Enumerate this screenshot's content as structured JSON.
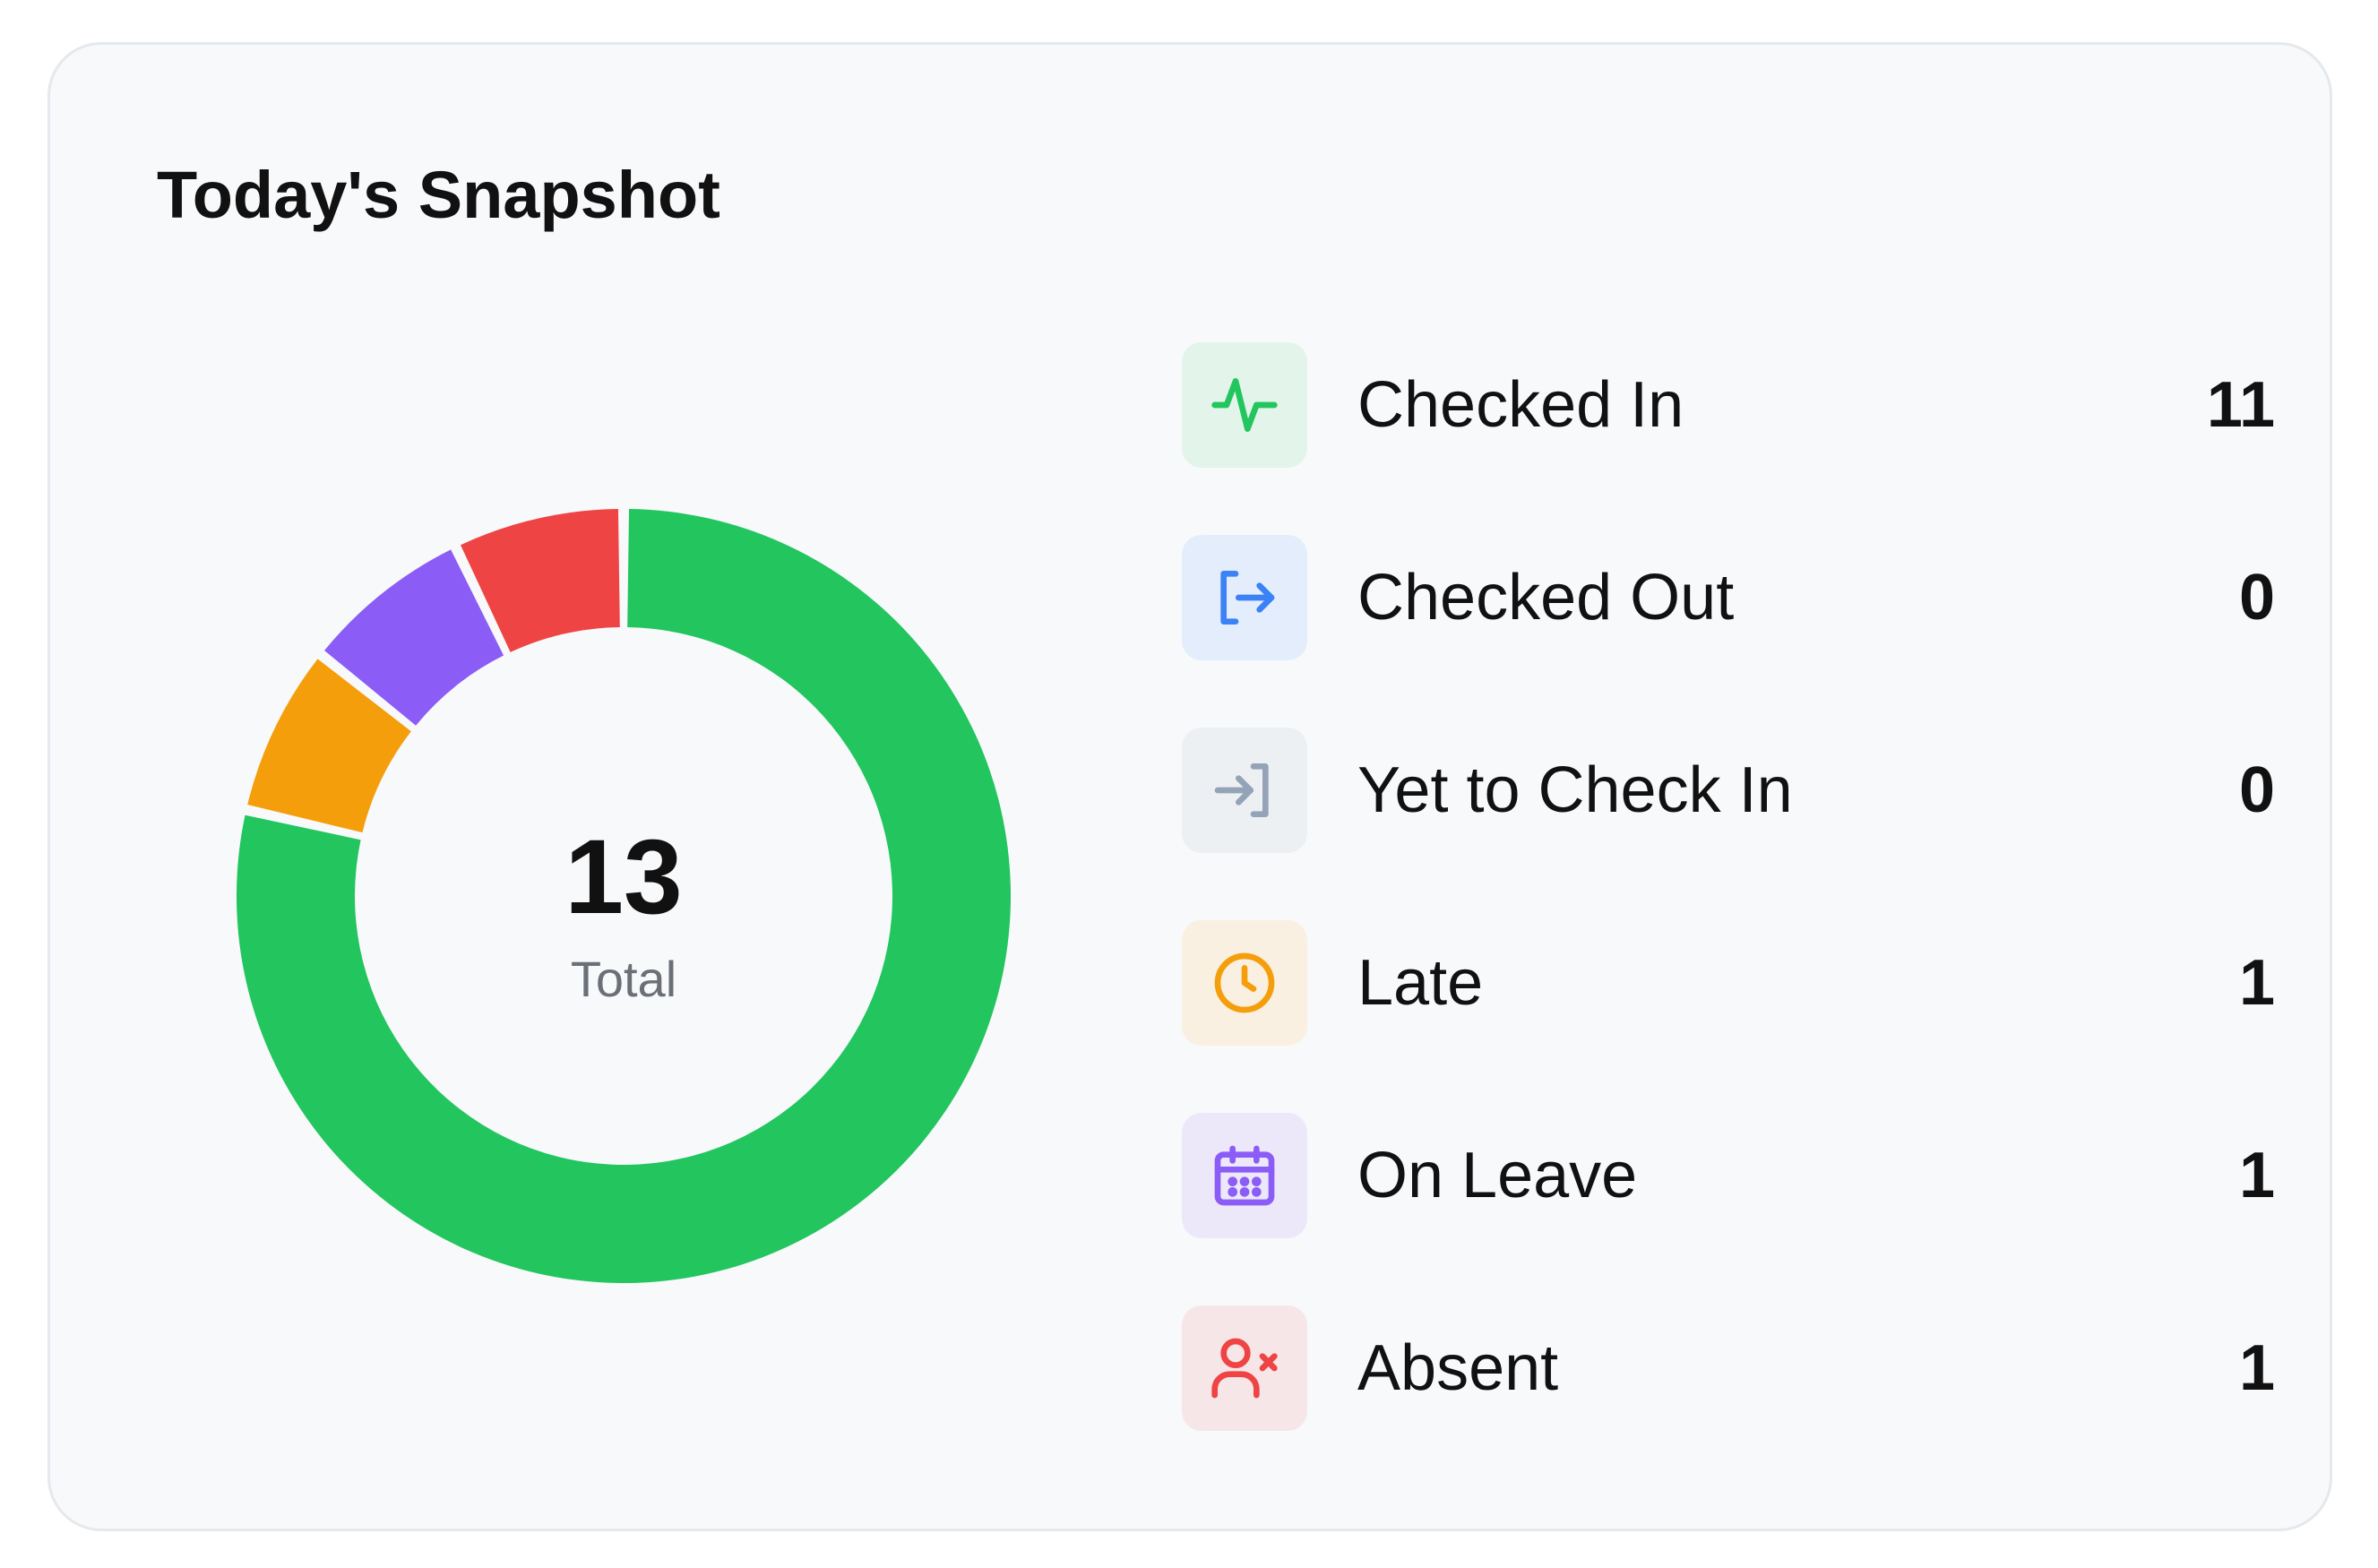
{
  "card": {
    "title": "Today's Snapshot"
  },
  "summary": {
    "total_value": "13",
    "total_label": "Total"
  },
  "legend": [
    {
      "label": "Checked In",
      "count": "11",
      "icon": "activity-pulse-icon",
      "color": "#22c55e",
      "bg": "#e3f4ea"
    },
    {
      "label": "Checked Out",
      "count": "0",
      "icon": "sign-out-icon",
      "color": "#3b82f6",
      "bg": "#e4edfb"
    },
    {
      "label": "Yet to Check In",
      "count": "0",
      "icon": "sign-in-icon",
      "color": "#94a3b8",
      "bg": "#edf0f3"
    },
    {
      "label": "Late",
      "count": "1",
      "icon": "clock-icon",
      "color": "#f59e0b",
      "bg": "#f9f0e2"
    },
    {
      "label": "On Leave",
      "count": "1",
      "icon": "calendar-icon",
      "color": "#8b5cf6",
      "bg": "#ece8fa"
    },
    {
      "label": "Absent",
      "count": "1",
      "icon": "user-x-icon",
      "color": "#ef4444",
      "bg": "#f7e6e7"
    }
  ],
  "chart_data": {
    "type": "pie",
    "style": "donut",
    "categories": [
      "Checked In",
      "Checked Out",
      "Yet to Check In",
      "Late",
      "On Leave",
      "Absent"
    ],
    "values": [
      11,
      0,
      0,
      1,
      1,
      1
    ],
    "colors": [
      "#22c55e",
      "#3b82f6",
      "#94a3b8",
      "#f59e0b",
      "#8b5cf6",
      "#ef4444"
    ],
    "center_value": "13",
    "center_label": "Total",
    "title": "Today's Snapshot"
  }
}
